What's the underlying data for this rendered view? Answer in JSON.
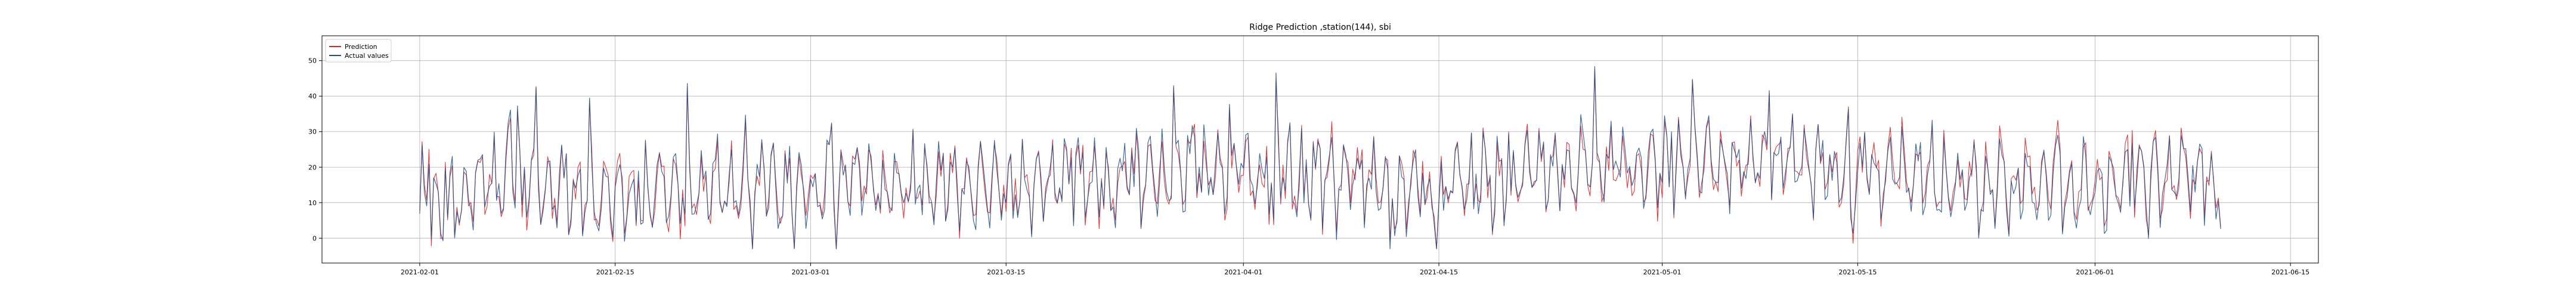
{
  "chart_data": {
    "type": "line",
    "title": "Ridge Prediction ,station(144), sbi",
    "xlabel": "",
    "ylabel": "",
    "x_range": [
      "2021-01-25",
      "2021-06-17"
    ],
    "x_data_range": [
      "2021-02-01",
      "2021-06-10"
    ],
    "ylim": [
      -7,
      57
    ],
    "x_ticks": [
      "2021-02-01",
      "2021-02-15",
      "2021-03-01",
      "2021-03-15",
      "2021-04-01",
      "2021-04-15",
      "2021-05-01",
      "2021-05-15",
      "2021-06-01",
      "2021-06-15"
    ],
    "y_ticks": [
      0,
      10,
      20,
      30,
      40,
      50
    ],
    "grid": true,
    "legend_position": "top-left",
    "series": [
      {
        "name": "Prediction",
        "color": "#d62728",
        "x": [
          "2021-02-01",
          "2021-02-08",
          "2021-02-15",
          "2021-02-22",
          "2021-03-01",
          "2021-03-08",
          "2021-03-15",
          "2021-03-22",
          "2021-04-01",
          "2021-04-08",
          "2021-04-15",
          "2021-04-22",
          "2021-05-01",
          "2021-05-08",
          "2021-05-15",
          "2021-05-22",
          "2021-06-01",
          "2021-06-08",
          "2021-06-10"
        ],
        "values": [
          8,
          18,
          12,
          14,
          13,
          15,
          14,
          16,
          18,
          17,
          15,
          19,
          20,
          21,
          20,
          17,
          14,
          19,
          11
        ]
      },
      {
        "name": "Actual values",
        "color": "#1f4e8c",
        "x": [
          "2021-02-01",
          "2021-02-08",
          "2021-02-15",
          "2021-02-22",
          "2021-03-01",
          "2021-03-08",
          "2021-03-15",
          "2021-03-22",
          "2021-04-01",
          "2021-04-08",
          "2021-04-15",
          "2021-04-22",
          "2021-05-01",
          "2021-05-08",
          "2021-05-15",
          "2021-05-22",
          "2021-06-01",
          "2021-06-08",
          "2021-06-10"
        ],
        "values": [
          7,
          19,
          11,
          15,
          12,
          16,
          13,
          17,
          19,
          16,
          14,
          20,
          21,
          22,
          19,
          16,
          13,
          20,
          10
        ]
      }
    ]
  }
}
